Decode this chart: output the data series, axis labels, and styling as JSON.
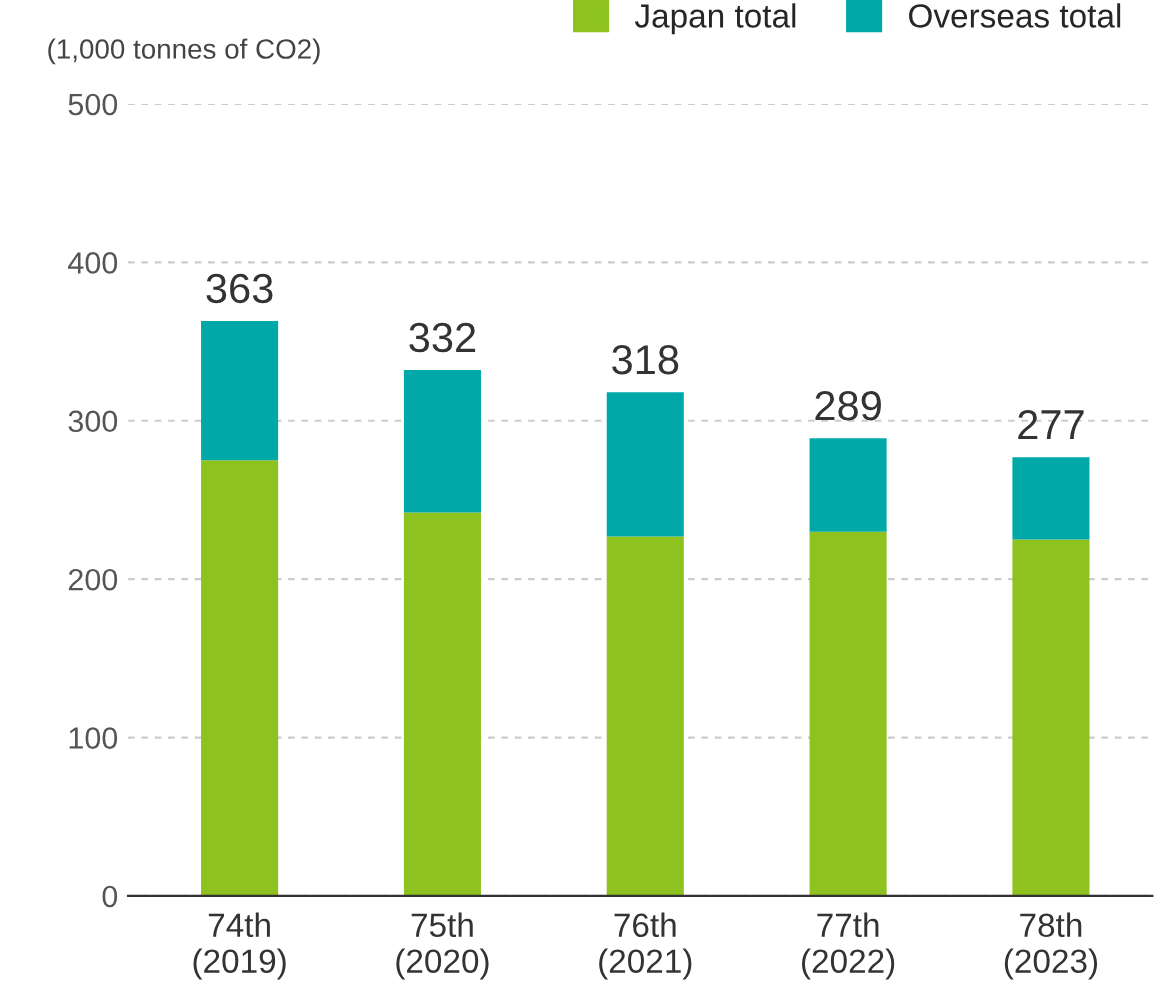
{
  "chart_data": {
    "type": "bar",
    "stacked": true,
    "ylabel": "(1,000 tonnes of CO2)",
    "categories": [
      "74th\n(2019)",
      "75th\n(2020)",
      "76th\n(2021)",
      "77th\n(2022)",
      "78th\n(2023)"
    ],
    "series": [
      {
        "name": "Japan total",
        "color": "#8dc21f",
        "values": [
          275,
          242,
          227,
          230,
          225
        ]
      },
      {
        "name": "Overseas total",
        "color": "#00a8a8",
        "values": [
          88,
          90,
          91,
          59,
          52
        ]
      }
    ],
    "totals": [
      "363",
      "332",
      "318",
      "289",
      "277"
    ],
    "ylim": [
      0,
      500
    ],
    "yticks": [
      0,
      100,
      200,
      300,
      400,
      500
    ],
    "grid": "y",
    "legend": "top right"
  }
}
